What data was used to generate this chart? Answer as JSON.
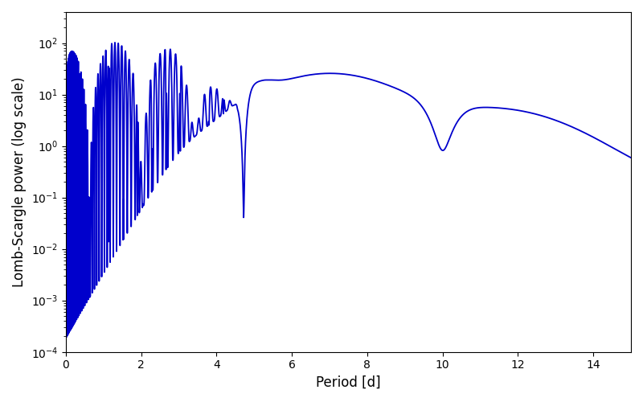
{
  "xlabel": "Period [d]",
  "ylabel": "Lomb-Scargle power (log scale)",
  "xlim": [
    0,
    15
  ],
  "ylim": [
    0.0001,
    400
  ],
  "line_color": "#0000CC",
  "line_width": 1.3,
  "figsize": [
    8.0,
    5.0
  ],
  "dpi": 100,
  "xticks": [
    0,
    2,
    4,
    6,
    8,
    10,
    12,
    14
  ]
}
